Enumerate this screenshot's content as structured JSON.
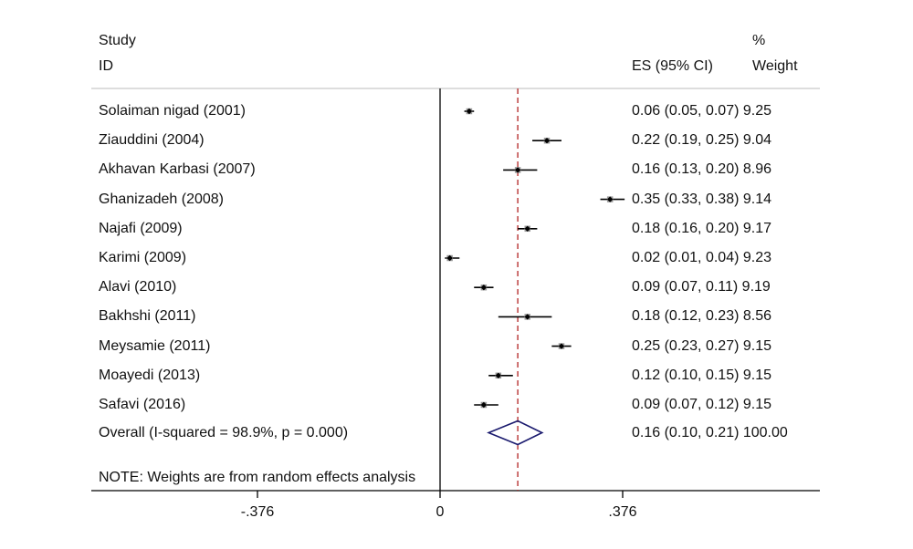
{
  "header": {
    "study_line1": "Study",
    "study_line2": "ID",
    "es_label": "ES (95% CI)",
    "weight_line1": "%",
    "weight_line2": "Weight"
  },
  "note": "NOTE: Weights are from random effects analysis",
  "chart_data": {
    "type": "forest",
    "x_ticks": [
      "-.376",
      "0",
      ".376"
    ],
    "x_tick_values": [
      -0.376,
      0,
      0.376
    ],
    "reference_line": 0,
    "overall_line": 0.16,
    "studies": [
      {
        "label": "Solaiman nigad (2001)",
        "es": 0.06,
        "lo": 0.05,
        "hi": 0.07,
        "weight": 9.25,
        "text": "0.06 (0.05, 0.07) 9.25"
      },
      {
        "label": "Ziauddini (2004)",
        "es": 0.22,
        "lo": 0.19,
        "hi": 0.25,
        "weight": 9.04,
        "text": "0.22 (0.19, 0.25) 9.04"
      },
      {
        "label": "Akhavan Karbasi (2007)",
        "es": 0.16,
        "lo": 0.13,
        "hi": 0.2,
        "weight": 8.96,
        "text": "0.16 (0.13, 0.20) 8.96"
      },
      {
        "label": "Ghanizadeh (2008)",
        "es": 0.35,
        "lo": 0.33,
        "hi": 0.38,
        "weight": 9.14,
        "text": "0.35 (0.33, 0.38) 9.14"
      },
      {
        "label": "Najafi (2009)",
        "es": 0.18,
        "lo": 0.16,
        "hi": 0.2,
        "weight": 9.17,
        "text": "0.18 (0.16, 0.20) 9.17"
      },
      {
        "label": "Karimi (2009)",
        "es": 0.02,
        "lo": 0.01,
        "hi": 0.04,
        "weight": 9.23,
        "text": "0.02 (0.01, 0.04) 9.23"
      },
      {
        "label": "Alavi (2010)",
        "es": 0.09,
        "lo": 0.07,
        "hi": 0.11,
        "weight": 9.19,
        "text": "0.09 (0.07, 0.11) 9.19"
      },
      {
        "label": "Bakhshi (2011)",
        "es": 0.18,
        "lo": 0.12,
        "hi": 0.23,
        "weight": 8.56,
        "text": "0.18 (0.12, 0.23) 8.56"
      },
      {
        "label": "Meysamie (2011)",
        "es": 0.25,
        "lo": 0.23,
        "hi": 0.27,
        "weight": 9.15,
        "text": "0.25 (0.23, 0.27) 9.15"
      },
      {
        "label": "Moayedi (2013)",
        "es": 0.12,
        "lo": 0.1,
        "hi": 0.15,
        "weight": 9.15,
        "text": "0.12 (0.10, 0.15) 9.15"
      },
      {
        "label": "Safavi (2016)",
        "es": 0.09,
        "lo": 0.07,
        "hi": 0.12,
        "weight": 9.15,
        "text": "0.09 (0.07, 0.12) 9.15"
      }
    ],
    "overall": {
      "label": "Overall  (I-squared = 98.9%, p = 0.000)",
      "es": 0.16,
      "lo": 0.1,
      "hi": 0.21,
      "weight": 100.0,
      "text": "0.16 (0.10, 0.21) 100.00"
    },
    "colors": {
      "overall_line": "#b22222",
      "diamond": "#1a1a6e",
      "ci": "#000000"
    }
  }
}
